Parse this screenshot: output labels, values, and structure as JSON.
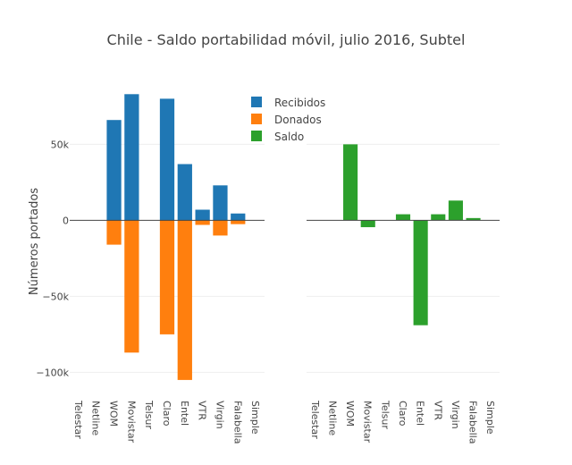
{
  "chart_data": {
    "type": "bar",
    "title": "Chile - Saldo portabilidad móvil, julio 2016, Subtel",
    "ylabel": "Números portados",
    "categories": [
      "Telestar",
      "Netline",
      "WOM",
      "Movistar",
      "Telsur",
      "Claro",
      "Entel",
      "VTR",
      "Virgin",
      "Falabella",
      "Simple"
    ],
    "ylim": [
      -108000,
      92000
    ],
    "yticks": [
      {
        "value": 50000,
        "label": "50k"
      },
      {
        "value": 0,
        "label": "0"
      },
      {
        "value": -50000,
        "label": "−50k"
      },
      {
        "value": -100000,
        "label": "−100k"
      }
    ],
    "series": [
      {
        "name": "Recibidos",
        "color": "#1f77b4",
        "panel": "left",
        "values": [
          0,
          0,
          66000,
          83000,
          0,
          80000,
          37000,
          7000,
          23000,
          4500,
          0
        ]
      },
      {
        "name": "Donados",
        "color": "#ff7f0e",
        "panel": "left",
        "values": [
          0,
          0,
          -16000,
          -87000,
          0,
          -75000,
          -105000,
          -3000,
          -10000,
          -2500,
          0
        ]
      },
      {
        "name": "Saldo",
        "color": "#2ca02c",
        "panel": "right",
        "values": [
          0,
          0,
          50000,
          -4500,
          0,
          4000,
          -69000,
          4000,
          13000,
          1500,
          0
        ]
      }
    ],
    "legend": "top-right"
  }
}
